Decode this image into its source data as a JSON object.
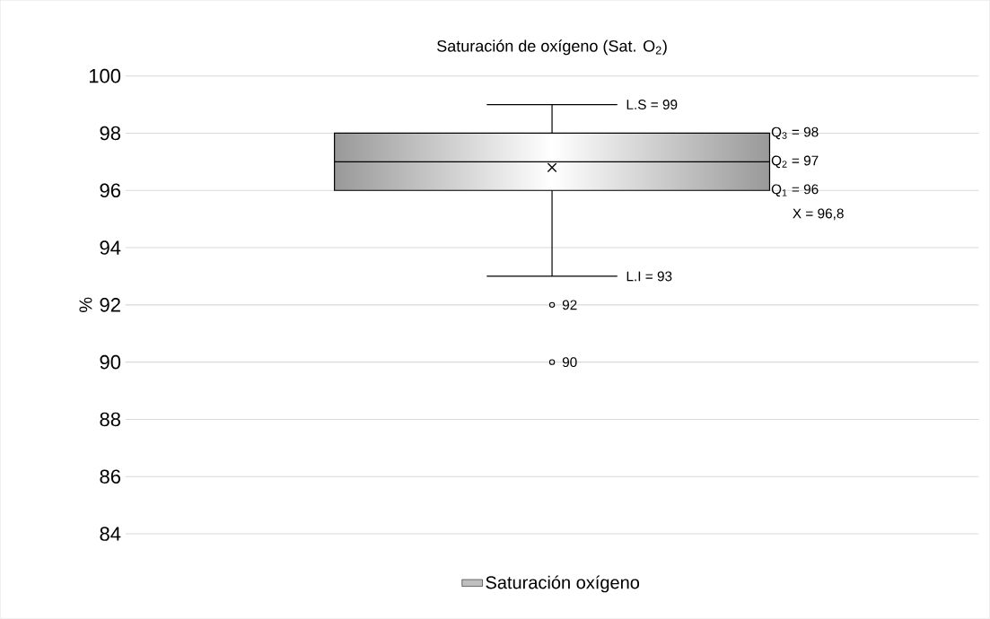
{
  "chart_data": {
    "type": "box",
    "title": "Saturación de oxígeno (Sat. O$_{2}$)",
    "ylabel": "%",
    "categories": [
      null
    ],
    "series": [
      {
        "name": "Saturación oxígeno",
        "color": "#bfbfbf",
        "boxes": [
          {
            "low": 93,
            "q1": 96,
            "median": 97,
            "q3": 98,
            "high": 99,
            "mean": 96.8,
            "outliers": [
              92,
              90
            ]
          }
        ]
      }
    ],
    "ylim": [
      84,
      100
    ],
    "yticks": [
      84,
      86,
      88,
      90,
      92,
      94,
      96,
      98,
      100
    ],
    "grid": "y",
    "legend": "bottom",
    "annotations": [
      "L.S = 99",
      "Q$_{3}$ = 98",
      "Q$_{2}$ = 97",
      "Q$_{1}$ = 96",
      "X = 96,8",
      "L.I = 93",
      "92",
      "90"
    ]
  }
}
